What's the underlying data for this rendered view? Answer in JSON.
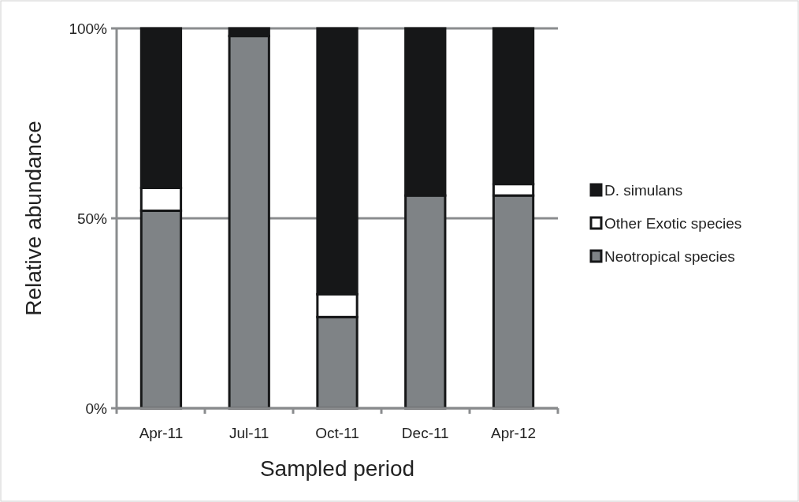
{
  "chart_data": {
    "type": "bar",
    "stacked": true,
    "xlabel": "Sampled period",
    "ylabel": "Relative abundance",
    "categories": [
      "Apr-11",
      "Jul-11",
      "Oct-11",
      "Dec-11",
      "Apr-12"
    ],
    "series": [
      {
        "name": "Neotropical species",
        "color": "#7f8386",
        "values": [
          52,
          98,
          24,
          56,
          56
        ]
      },
      {
        "name": "Other Exotic species",
        "color": "#ffffff",
        "values": [
          6,
          0,
          6,
          0,
          3
        ]
      },
      {
        "name": "D. simulans",
        "color": "#161718",
        "values": [
          42,
          2,
          70,
          44,
          41
        ]
      }
    ],
    "ylim": [
      0,
      100
    ],
    "yticks": [
      {
        "value": 0,
        "label": "0%"
      },
      {
        "value": 50,
        "label": "50%"
      },
      {
        "value": 100,
        "label": "100%"
      }
    ],
    "grid": "y",
    "legend": "right"
  }
}
